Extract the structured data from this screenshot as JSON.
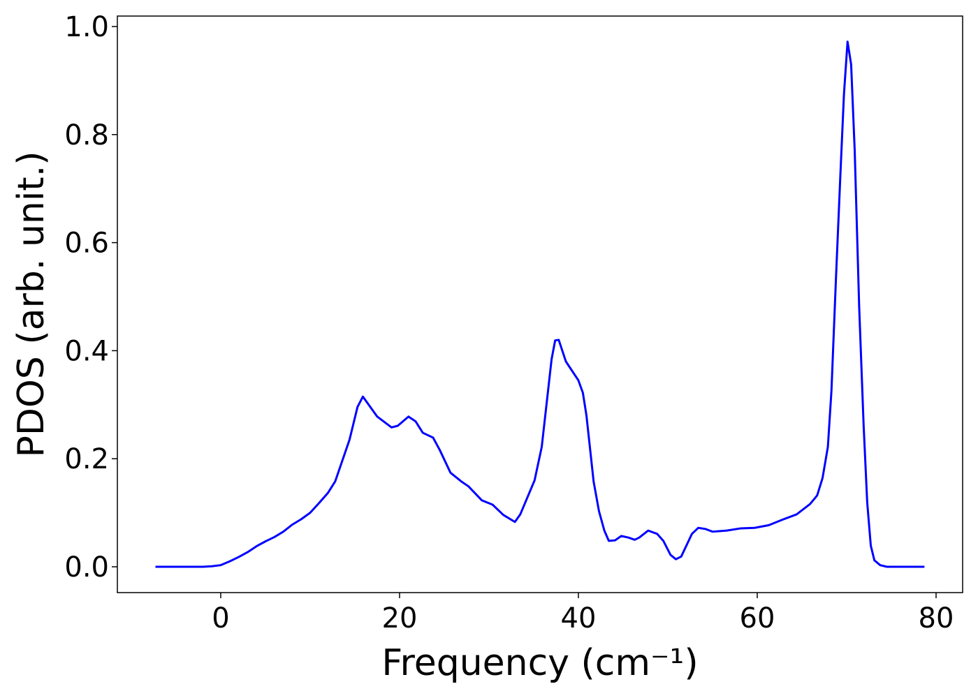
{
  "chart_data": {
    "type": "line",
    "xlabel": "Frequency (cm⁻¹)",
    "ylabel": "PDOS (arb. unit.)",
    "xlim": [
      -11.56,
      82.97
    ],
    "ylim": [
      -0.0478,
      1.0194
    ],
    "xticks": [
      0,
      20,
      40,
      60,
      80
    ],
    "yticks": [
      {
        "value": 0,
        "label": "0.0"
      },
      0.2,
      0.4,
      0.6,
      0.8,
      {
        "value": 1,
        "label": "1.0"
      }
    ],
    "grid": false,
    "series": [
      {
        "color": "#0000ff",
        "x": [
          -7.3,
          -2,
          -1,
          0,
          1,
          2,
          3,
          4,
          5,
          6,
          7,
          8,
          9,
          10,
          11,
          12,
          12.8,
          14.4,
          15.3,
          15.9,
          17.5,
          19.1,
          19.8,
          21,
          21.8,
          22.6,
          23.75,
          24.5,
          25.7,
          26.9,
          27.7,
          29.2,
          30.4,
          31.6,
          32.9,
          33.5,
          35.1,
          35.9,
          37,
          37.4,
          37.8,
          38.6,
          39.4,
          40,
          40.5,
          40.9,
          41.7,
          42.3,
          42.9,
          43.4,
          44.1,
          44.8,
          45.6,
          46.3,
          46.8,
          47.8,
          48.8,
          49.5,
          50.3,
          50.9,
          51.5,
          52.7,
          53.4,
          54.2,
          55,
          56.6,
          58.1,
          59.7,
          61.3,
          62.8,
          64.4,
          65.9,
          66.7,
          67.3,
          67.9,
          68.3,
          68.8,
          69.3,
          69.7,
          70.1,
          70.5,
          70.9,
          71.4,
          71.9,
          72.3,
          72.7,
          73.1,
          73.75,
          74.5,
          78.7
        ],
        "values": [
          0,
          0,
          0.001,
          0.003,
          0.01,
          0.018,
          0.027,
          0.038,
          0.047,
          0.055,
          0.065,
          0.078,
          0.088,
          0.1,
          0.118,
          0.137,
          0.158,
          0.235,
          0.296,
          0.315,
          0.278,
          0.258,
          0.261,
          0.278,
          0.269,
          0.248,
          0.239,
          0.216,
          0.174,
          0.158,
          0.149,
          0.123,
          0.115,
          0.096,
          0.083,
          0.097,
          0.16,
          0.222,
          0.384,
          0.419,
          0.42,
          0.38,
          0.36,
          0.345,
          0.322,
          0.28,
          0.158,
          0.103,
          0.067,
          0.048,
          0.049,
          0.057,
          0.054,
          0.05,
          0.054,
          0.067,
          0.061,
          0.048,
          0.022,
          0.014,
          0.019,
          0.061,
          0.072,
          0.07,
          0.065,
          0.067,
          0.071,
          0.072,
          0.077,
          0.087,
          0.097,
          0.116,
          0.132,
          0.164,
          0.222,
          0.326,
          0.532,
          0.726,
          0.875,
          0.972,
          0.93,
          0.771,
          0.481,
          0.261,
          0.119,
          0.039,
          0.012,
          0.003,
          0,
          0
        ]
      }
    ]
  }
}
